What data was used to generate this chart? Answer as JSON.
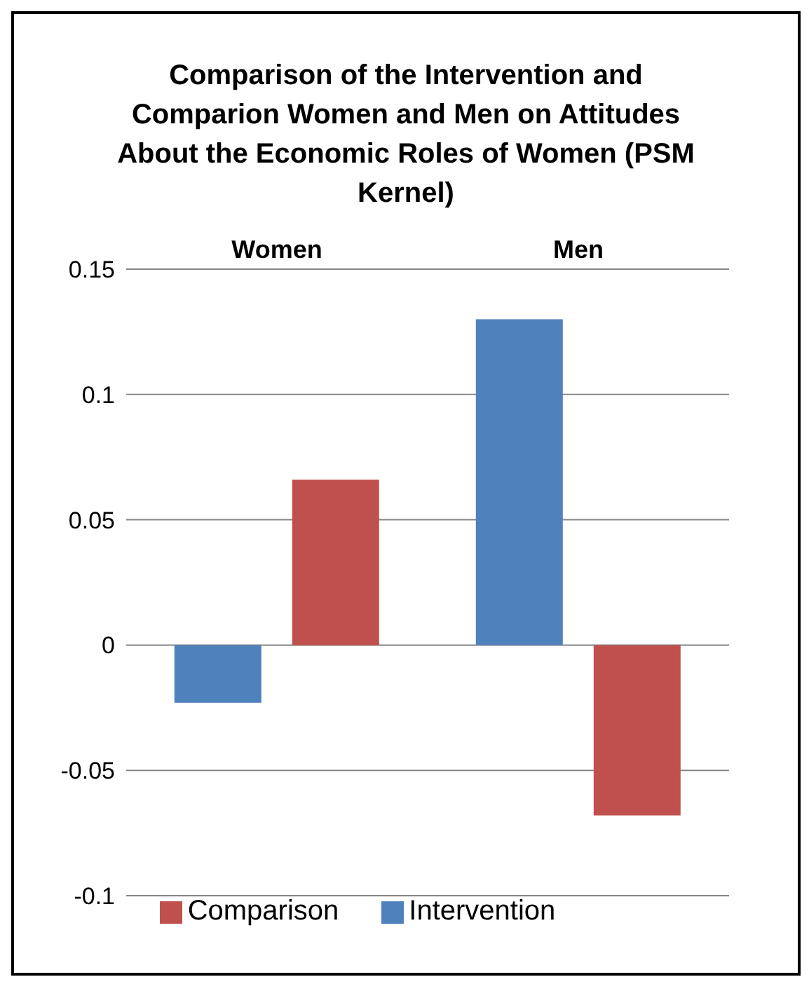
{
  "chart_data": {
    "type": "bar",
    "title": "Comparison of the Intervention and Comparion Women and Men on Attitudes About the Economic Roles of Women (PSM Kernel)",
    "categories": [
      "Women",
      "Men"
    ],
    "series": [
      {
        "name": "Intervention",
        "color": "#4f81bd",
        "values": [
          -0.023,
          0.13
        ]
      },
      {
        "name": "Comparison",
        "color": "#c0504d",
        "values": [
          0.066,
          -0.068
        ]
      }
    ],
    "ylim": [
      -0.1,
      0.15
    ],
    "yticks": [
      -0.1,
      -0.05,
      0,
      0.05,
      0.1,
      0.15
    ],
    "grid": "y",
    "legend": "bottom"
  }
}
